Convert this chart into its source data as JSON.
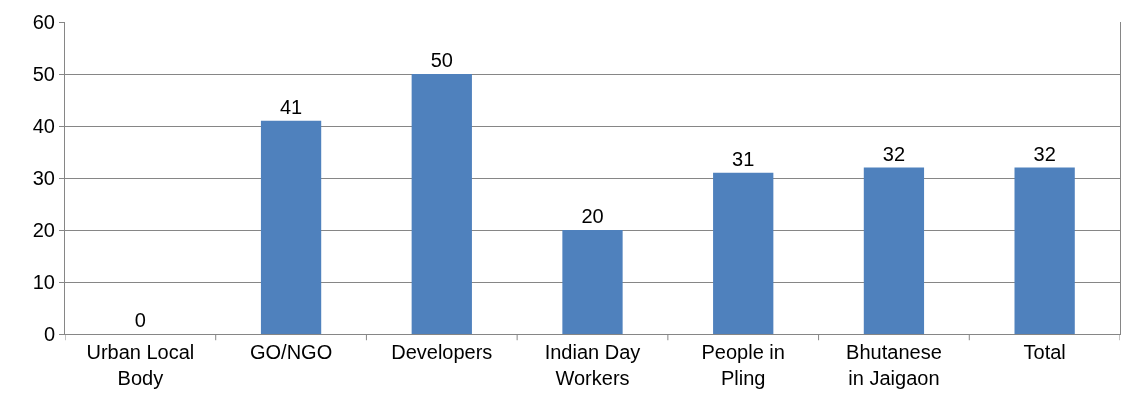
{
  "chart_data": {
    "type": "bar",
    "categories": [
      "Urban Local Body",
      "GO/NGO",
      "Developers",
      "Indian Day Workers",
      "People in Pling",
      "Bhutanese in Jaigaon",
      "Total"
    ],
    "values": [
      0,
      41,
      50,
      20,
      31,
      32,
      32
    ],
    "color": "#4f81bd",
    "ylim": [
      0,
      60
    ],
    "yticks": [
      0,
      10,
      20,
      30,
      40,
      50,
      60
    ],
    "grid": "y",
    "data_labels": true,
    "legend": false
  }
}
